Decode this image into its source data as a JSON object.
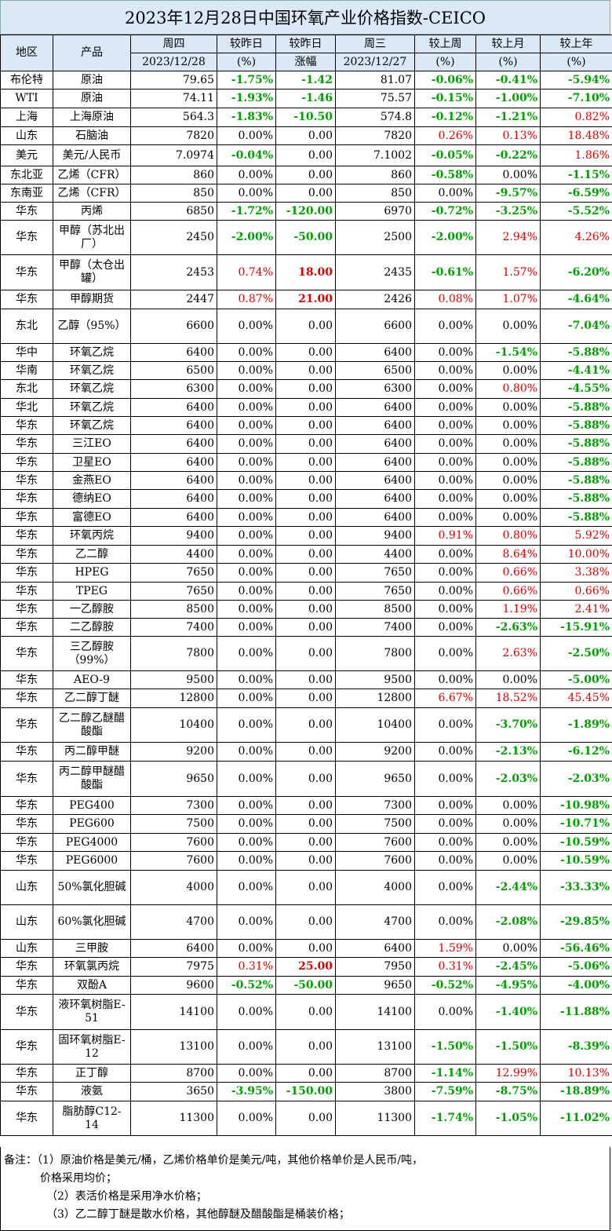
{
  "title": "2023年12月28日中国环氧产业价格指数-CEICO",
  "header": {
    "region": "地区",
    "product": "产品",
    "thu": "周四",
    "thu_date": "2023/12/28",
    "dod": "较昨日",
    "dod_unit": "(%)",
    "dod_abs": "较昨日",
    "dod_abs_unit": "涨幅",
    "wed": "周三",
    "wed_date": "2023/12/27",
    "wow": "较上周",
    "wow_unit": "(%)",
    "mom": "较上月",
    "mom_unit": "(%)",
    "yoy": "较上年",
    "yoy_unit": "(%)"
  },
  "rows": [
    {
      "region": "布伦特",
      "product": "原油",
      "thu": "79.65",
      "dod": "-1.75%",
      "chg": "-1.42",
      "wed": "81.07",
      "wow": "-0.06%",
      "mom": "-0.41%",
      "yoy": "-5.94%"
    },
    {
      "region": "WTI",
      "product": "原油",
      "thu": "74.11",
      "dod": "-1.93%",
      "chg": "-1.46",
      "wed": "75.57",
      "wow": "-0.15%",
      "mom": "-1.00%",
      "yoy": "-7.10%"
    },
    {
      "region": "上海",
      "product": "上海原油",
      "thu": "564.3",
      "dod": "-1.83%",
      "chg": "-10.50",
      "wed": "574.8",
      "wow": "-0.12%",
      "mom": "-1.21%",
      "yoy": "0.82%"
    },
    {
      "region": "山东",
      "product": "石脑油",
      "thu": "7820",
      "dod": "0.00%",
      "chg": "0.00",
      "wed": "7820",
      "wow": "0.26%",
      "mom": "0.13%",
      "yoy": "18.48%"
    },
    {
      "region": "美元",
      "product": "美元/人民币",
      "thu": "7.0974",
      "dod": "-0.04%",
      "chg": "0.00",
      "wed": "7.1002",
      "wow": "-0.05%",
      "mom": "-0.22%",
      "yoy": "1.86%"
    },
    {
      "region": "东北亚",
      "product": "乙烯（CFR）",
      "thu": "860",
      "dod": "0.00%",
      "chg": "0.00",
      "wed": "860",
      "wow": "-0.58%",
      "mom": "0.00%",
      "yoy": "-1.15%"
    },
    {
      "region": "东南亚",
      "product": "乙烯（CFR）",
      "thu": "850",
      "dod": "0.00%",
      "chg": "0.00",
      "wed": "850",
      "wow": "0.00%",
      "mom": "-9.57%",
      "yoy": "-6.59%"
    },
    {
      "region": "华东",
      "product": "丙烯",
      "thu": "6850",
      "dod": "-1.72%",
      "chg": "-120.00",
      "wed": "6970",
      "wow": "-0.72%",
      "mom": "-3.25%",
      "yoy": "-5.52%"
    },
    {
      "region": "华东",
      "product": "甲醇（苏北出厂）",
      "thu": "2450",
      "dod": "-2.00%",
      "chg": "-50.00",
      "wed": "2500",
      "wow": "-2.00%",
      "mom": "2.94%",
      "yoy": "4.26%"
    },
    {
      "region": "华东",
      "product": "甲醇（太仓出罐）",
      "thu": "2453",
      "dod": "0.74%",
      "chg": "18.00",
      "wed": "2435",
      "wow": "-0.61%",
      "mom": "1.57%",
      "yoy": "-6.20%"
    },
    {
      "region": "华东",
      "product": "甲醇期货",
      "thu": "2447",
      "dod": "0.87%",
      "chg": "21.00",
      "wed": "2426",
      "wow": "0.08%",
      "mom": "1.07%",
      "yoy": "-4.64%"
    },
    {
      "region": "东北",
      "product": "乙醇（95%）",
      "thu": "6600",
      "dod": "0.00%",
      "chg": "0.00",
      "wed": "6600",
      "wow": "0.00%",
      "mom": "0.00%",
      "yoy": "-7.04%"
    },
    {
      "region": "华中",
      "product": "环氧乙烷",
      "thu": "6400",
      "dod": "0.00%",
      "chg": "0.00",
      "wed": "6400",
      "wow": "0.00%",
      "mom": "-1.54%",
      "yoy": "-5.88%"
    },
    {
      "region": "华南",
      "product": "环氧乙烷",
      "thu": "6500",
      "dod": "0.00%",
      "chg": "0.00",
      "wed": "6500",
      "wow": "0.00%",
      "mom": "0.00%",
      "yoy": "-4.41%"
    },
    {
      "region": "东北",
      "product": "环氧乙烷",
      "thu": "6300",
      "dod": "0.00%",
      "chg": "0.00",
      "wed": "6300",
      "wow": "0.00%",
      "mom": "0.80%",
      "yoy": "-4.55%"
    },
    {
      "region": "华北",
      "product": "环氧乙烷",
      "thu": "6400",
      "dod": "0.00%",
      "chg": "0.00",
      "wed": "6400",
      "wow": "0.00%",
      "mom": "0.00%",
      "yoy": "-5.88%"
    },
    {
      "region": "华东",
      "product": "环氧乙烷",
      "thu": "6400",
      "dod": "0.00%",
      "chg": "0.00",
      "wed": "6400",
      "wow": "0.00%",
      "mom": "0.00%",
      "yoy": "-5.88%"
    },
    {
      "region": "华东",
      "product": "三江EO",
      "thu": "6400",
      "dod": "0.00%",
      "chg": "0.00",
      "wed": "6400",
      "wow": "0.00%",
      "mom": "0.00%",
      "yoy": "-5.88%"
    },
    {
      "region": "华东",
      "product": "卫星EO",
      "thu": "6400",
      "dod": "0.00%",
      "chg": "0.00",
      "wed": "6400",
      "wow": "0.00%",
      "mom": "0.00%",
      "yoy": "-5.88%"
    },
    {
      "region": "华东",
      "product": "金燕EO",
      "thu": "6400",
      "dod": "0.00%",
      "chg": "0.00",
      "wed": "6400",
      "wow": "0.00%",
      "mom": "0.00%",
      "yoy": "-5.88%"
    },
    {
      "region": "华东",
      "product": "德纳EO",
      "thu": "6400",
      "dod": "0.00%",
      "chg": "0.00",
      "wed": "6400",
      "wow": "0.00%",
      "mom": "0.00%",
      "yoy": "-5.88%"
    },
    {
      "region": "华东",
      "product": "富德EO",
      "thu": "6400",
      "dod": "0.00%",
      "chg": "0.00",
      "wed": "6400",
      "wow": "0.00%",
      "mom": "0.00%",
      "yoy": "-5.88%"
    },
    {
      "region": "华东",
      "product": "环氧丙烷",
      "thu": "9400",
      "dod": "0.00%",
      "chg": "0.00",
      "wed": "9400",
      "wow": "0.91%",
      "mom": "0.80%",
      "yoy": "5.92%"
    },
    {
      "region": "华东",
      "product": "乙二醇",
      "thu": "4400",
      "dod": "0.00%",
      "chg": "0.00",
      "wed": "4400",
      "wow": "0.00%",
      "mom": "8.64%",
      "yoy": "10.00%"
    },
    {
      "region": "华东",
      "product": "HPEG",
      "thu": "7650",
      "dod": "0.00%",
      "chg": "0.00",
      "wed": "7650",
      "wow": "0.00%",
      "mom": "0.66%",
      "yoy": "3.38%"
    },
    {
      "region": "华东",
      "product": "TPEG",
      "thu": "7650",
      "dod": "0.00%",
      "chg": "0.00",
      "wed": "7650",
      "wow": "0.00%",
      "mom": "0.66%",
      "yoy": "0.66%"
    },
    {
      "region": "华东",
      "product": "一乙醇胺",
      "thu": "8500",
      "dod": "0.00%",
      "chg": "0.00",
      "wed": "8500",
      "wow": "0.00%",
      "mom": "1.19%",
      "yoy": "2.41%"
    },
    {
      "region": "华东",
      "product": "二乙醇胺",
      "thu": "7400",
      "dod": "0.00%",
      "chg": "0.00",
      "wed": "7400",
      "wow": "0.00%",
      "mom": "-2.63%",
      "yoy": "-15.91%"
    },
    {
      "region": "华东",
      "product": "三乙醇胺（99%）",
      "thu": "7800",
      "dod": "0.00%",
      "chg": "0.00",
      "wed": "7800",
      "wow": "0.00%",
      "mom": "2.63%",
      "yoy": "-2.50%"
    },
    {
      "region": "华东",
      "product": "AEO-9",
      "thu": "9500",
      "dod": "0.00%",
      "chg": "0.00",
      "wed": "9500",
      "wow": "0.00%",
      "mom": "0.00%",
      "yoy": "-5.00%"
    },
    {
      "region": "华东",
      "product": "乙二醇丁醚",
      "thu": "12800",
      "dod": "0.00%",
      "chg": "0.00",
      "wed": "12800",
      "wow": "6.67%",
      "mom": "18.52%",
      "yoy": "45.45%"
    },
    {
      "region": "华东",
      "product": "乙二醇乙醚醋酸酯",
      "thu": "10400",
      "dod": "0.00%",
      "chg": "0.00",
      "wed": "10400",
      "wow": "0.00%",
      "mom": "-3.70%",
      "yoy": "-1.89%"
    },
    {
      "region": "华东",
      "product": "丙二醇甲醚",
      "thu": "9200",
      "dod": "0.00%",
      "chg": "0.00",
      "wed": "9200",
      "wow": "0.00%",
      "mom": "-2.13%",
      "yoy": "-6.12%"
    },
    {
      "region": "华东",
      "product": "丙二醇甲醚醋酸酯",
      "thu": "9650",
      "dod": "0.00%",
      "chg": "0.00",
      "wed": "9650",
      "wow": "0.00%",
      "mom": "-2.03%",
      "yoy": "-2.03%"
    },
    {
      "region": "华东",
      "product": "PEG400",
      "thu": "7300",
      "dod": "0.00%",
      "chg": "0.00",
      "wed": "7300",
      "wow": "0.00%",
      "mom": "0.00%",
      "yoy": "-10.98%"
    },
    {
      "region": "华东",
      "product": "PEG600",
      "thu": "7500",
      "dod": "0.00%",
      "chg": "0.00",
      "wed": "7500",
      "wow": "0.00%",
      "mom": "0.00%",
      "yoy": "-10.71%"
    },
    {
      "region": "华东",
      "product": "PEG4000",
      "thu": "7600",
      "dod": "0.00%",
      "chg": "0.00",
      "wed": "7600",
      "wow": "0.00%",
      "mom": "0.00%",
      "yoy": "-10.59%"
    },
    {
      "region": "华东",
      "product": "PEG6000",
      "thu": "7600",
      "dod": "0.00%",
      "chg": "0.00",
      "wed": "7600",
      "wow": "0.00%",
      "mom": "0.00%",
      "yoy": "-10.59%"
    },
    {
      "region": "山东",
      "product": "50%氯化胆碱",
      "thu": "4000",
      "dod": "0.00%",
      "chg": "0.00",
      "wed": "4000",
      "wow": "0.00%",
      "mom": "-2.44%",
      "yoy": "-33.33%"
    },
    {
      "region": "山东",
      "product": "60%氯化胆碱",
      "thu": "4700",
      "dod": "0.00%",
      "chg": "0.00",
      "wed": "4700",
      "wow": "0.00%",
      "mom": "-2.08%",
      "yoy": "-29.85%"
    },
    {
      "region": "山东",
      "product": "三甲胺",
      "thu": "6400",
      "dod": "0.00%",
      "chg": "0.00",
      "wed": "6400",
      "wow": "1.59%",
      "mom": "0.00%",
      "yoy": "-56.46%"
    },
    {
      "region": "华东",
      "product": "环氧氯丙烷",
      "thu": "7975",
      "dod": "0.31%",
      "chg": "25.00",
      "wed": "7950",
      "wow": "0.31%",
      "mom": "-2.45%",
      "yoy": "-5.06%"
    },
    {
      "region": "华东",
      "product": "双酚A",
      "thu": "9600",
      "dod": "-0.52%",
      "chg": "-50.00",
      "wed": "9650",
      "wow": "-0.52%",
      "mom": "-4.95%",
      "yoy": "-4.00%"
    },
    {
      "region": "华东",
      "product": "液环氧树脂E-51",
      "thu": "14100",
      "dod": "0.00%",
      "chg": "0.00",
      "wed": "14100",
      "wow": "0.00%",
      "mom": "-1.40%",
      "yoy": "-11.88%"
    },
    {
      "region": "华东",
      "product": "固环氧树脂E-12",
      "thu": "13100",
      "dod": "0.00%",
      "chg": "0.00",
      "wed": "13100",
      "wow": "-1.50%",
      "mom": "-1.50%",
      "yoy": "-8.39%"
    },
    {
      "region": "华东",
      "product": "正丁醇",
      "thu": "8700",
      "dod": "0.00%",
      "chg": "0.00",
      "wed": "8700",
      "wow": "-1.14%",
      "mom": "12.99%",
      "yoy": "10.13%"
    },
    {
      "region": "华东",
      "product": "液氨",
      "thu": "3650",
      "dod": "-3.95%",
      "chg": "-150.00",
      "wed": "3800",
      "wow": "-7.59%",
      "mom": "-8.75%",
      "yoy": "-18.89%"
    },
    {
      "region": "华东",
      "product": "脂肪醇C12-14",
      "thu": "11300",
      "dod": "0.00%",
      "chg": "0.00",
      "wed": "11300",
      "wow": "-1.74%",
      "mom": "-1.05%",
      "yoy": "-11.02%"
    }
  ],
  "notes": [
    "备注：（1）原油价格是美元/桶，乙烯价格单价是美元/吨，其他价格单价是人民币/吨，",
    "价格采用均价；",
    "（2）表活价格是采用净水价格；",
    "（3）乙二醇丁醚是散水价格，其他醇醚及醋酸酯是桶装价格；"
  ]
}
